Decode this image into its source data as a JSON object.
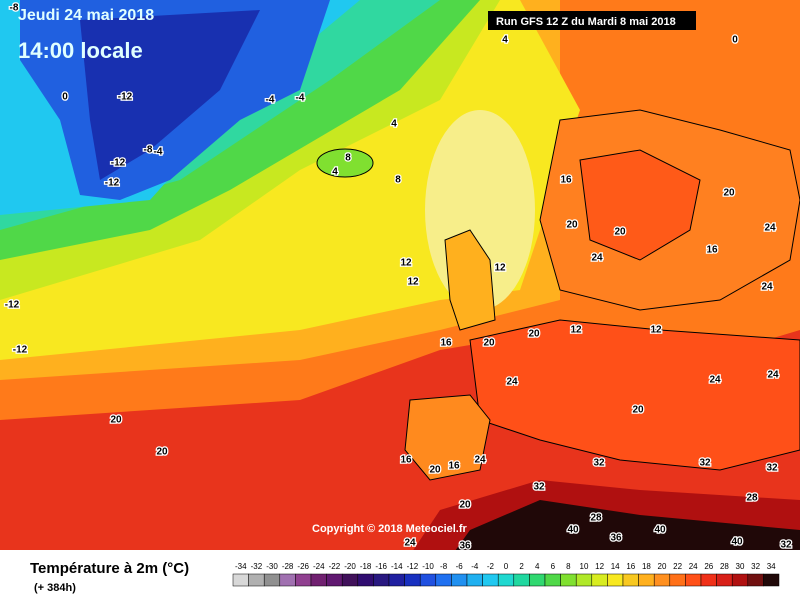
{
  "header": {
    "date": "Jeudi 24 mai 2018",
    "time": "14:00 locale",
    "run": "Run GFS 12 Z du Mardi 8 mai 2018"
  },
  "copyright": "Copyright © 2018 Meteociel.fr",
  "legend": {
    "title": "Température à 2m (°C)",
    "subtitle": "(+ 384h)",
    "ticks": [
      -34,
      -32,
      -30,
      -28,
      -26,
      -24,
      -22,
      -20,
      -18,
      -16,
      -14,
      -12,
      -10,
      -8,
      -6,
      -4,
      -2,
      0,
      2,
      4,
      6,
      8,
      10,
      12,
      14,
      16,
      18,
      20,
      22,
      24,
      26,
      28,
      30,
      32,
      34
    ],
    "colors": [
      "#d8d8d8",
      "#b0b0b0",
      "#909090",
      "#a070b0",
      "#904090",
      "#702070",
      "#601870",
      "#40105a",
      "#300c70",
      "#281880",
      "#2020a0",
      "#1830c0",
      "#2050e0",
      "#2070f0",
      "#2090f0",
      "#20b0f0",
      "#20c8f0",
      "#20d8d0",
      "#20d8a0",
      "#30d870",
      "#50d848",
      "#80e030",
      "#b0e828",
      "#d8ec20",
      "#f8e820",
      "#f8c820",
      "#ffb01e",
      "#ff9020",
      "#ff7018",
      "#ff5018",
      "#f03018",
      "#d82018",
      "#b01010",
      "#701010",
      "#200808"
    ]
  },
  "map_labels": [
    -12,
    -12,
    -12,
    0,
    -8,
    -4,
    -4,
    -4,
    4,
    4,
    8,
    8,
    4,
    12,
    12,
    12,
    16,
    20,
    24,
    20,
    16,
    20,
    24,
    24,
    16,
    20,
    24,
    20,
    12,
    12,
    20,
    24,
    24,
    20,
    20,
    20,
    16,
    16,
    24,
    32,
    40,
    40,
    40,
    28,
    36,
    32,
    32,
    32,
    32,
    20,
    24,
    36,
    28,
    -8,
    -12,
    -12,
    0
  ]
}
